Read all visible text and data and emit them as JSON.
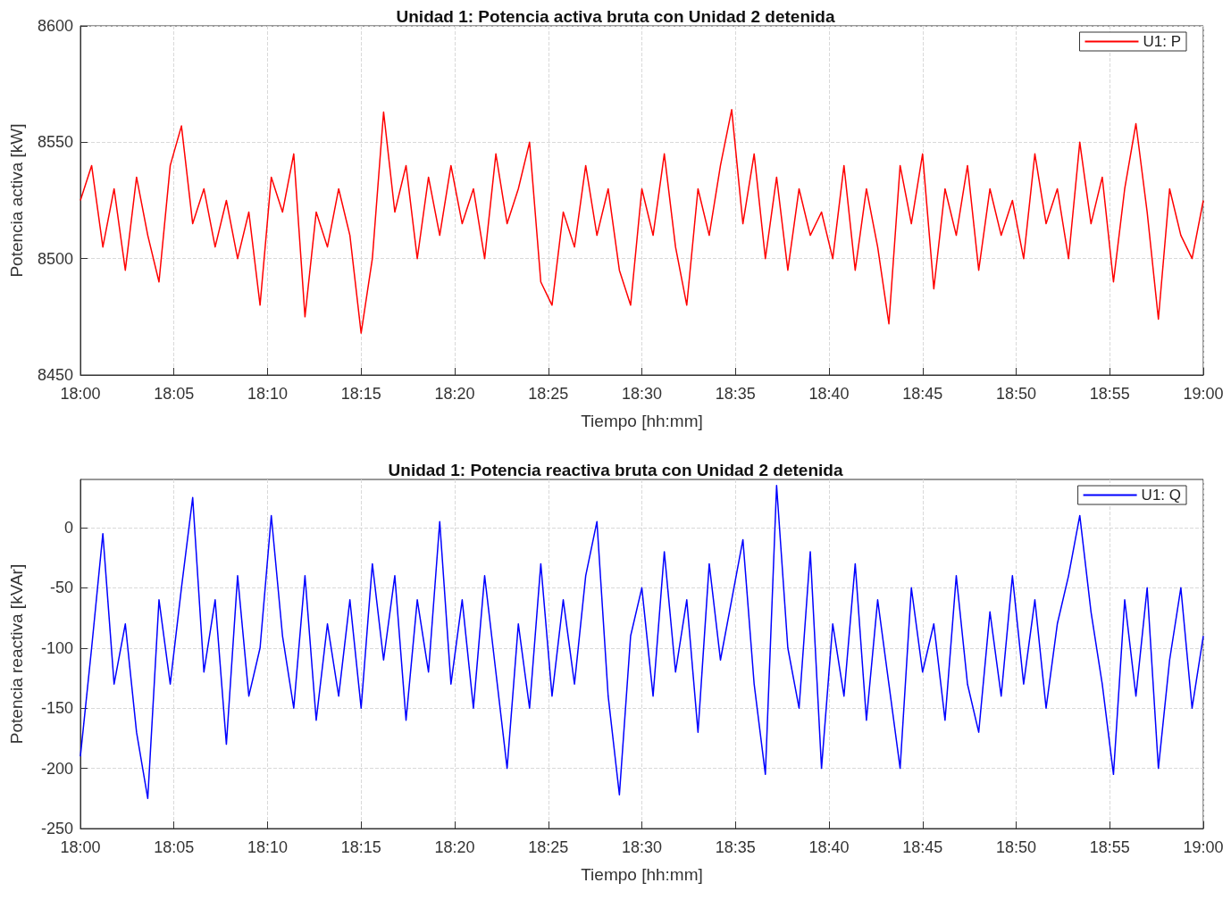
{
  "chart_data": [
    {
      "type": "line",
      "title": "Unidad 1: Potencia activa bruta con Unidad 2 detenida",
      "xlabel": "Tiempo [hh:mm]",
      "ylabel": "Potencia activa [kW]",
      "xlim": [
        18,
        19
      ],
      "xticks": [
        {
          "value": 18,
          "label": "18:00"
        },
        {
          "value": 18.0833,
          "label": "18:05"
        },
        {
          "value": 18.1667,
          "label": "18:10"
        },
        {
          "value": 18.25,
          "label": "18:15"
        },
        {
          "value": 18.3333,
          "label": "18:20"
        },
        {
          "value": 18.4167,
          "label": "18:25"
        },
        {
          "value": 18.5,
          "label": "18:30"
        },
        {
          "value": 18.5833,
          "label": "18:35"
        },
        {
          "value": 18.6667,
          "label": "18:40"
        },
        {
          "value": 18.75,
          "label": "18:45"
        },
        {
          "value": 18.8333,
          "label": "18:50"
        },
        {
          "value": 18.9167,
          "label": "18:55"
        },
        {
          "value": 19,
          "label": "19:00"
        }
      ],
      "ylim": [
        8450,
        8600
      ],
      "yticks": [
        8450,
        8500,
        8550,
        8600
      ],
      "grid": true,
      "legend": "top right",
      "marker": "none",
      "line_style": "solid",
      "x": [
        18,
        18.01,
        18.02,
        18.03,
        18.04,
        18.05,
        18.06,
        18.07,
        18.08,
        18.09,
        18.1,
        18.11,
        18.12,
        18.13,
        18.14,
        18.15,
        18.16,
        18.17,
        18.18,
        18.19,
        18.2,
        18.21,
        18.22,
        18.23,
        18.24,
        18.25,
        18.26,
        18.27,
        18.28,
        18.29,
        18.3,
        18.31,
        18.32,
        18.33,
        18.34,
        18.35,
        18.36,
        18.37,
        18.38,
        18.39,
        18.4,
        18.41,
        18.42,
        18.43,
        18.44,
        18.45,
        18.46,
        18.47,
        18.48,
        18.49,
        18.5,
        18.51,
        18.52,
        18.53,
        18.54,
        18.55,
        18.56,
        18.57,
        18.58,
        18.59,
        18.6,
        18.61,
        18.62,
        18.63,
        18.64,
        18.65,
        18.66,
        18.67,
        18.68,
        18.69,
        18.7,
        18.71,
        18.72,
        18.73,
        18.74,
        18.75,
        18.76,
        18.77,
        18.78,
        18.79,
        18.8,
        18.81,
        18.82,
        18.83,
        18.84,
        18.85,
        18.86,
        18.87,
        18.88,
        18.89,
        18.9,
        18.91,
        18.92,
        18.93,
        18.94,
        18.95,
        18.96,
        18.97,
        18.98,
        18.99,
        19
      ],
      "series": [
        {
          "name": "U1: P",
          "color": "#ff0000",
          "values": [
            8525,
            8540,
            8505,
            8530,
            8495,
            8535,
            8510,
            8490,
            8540,
            8557,
            8515,
            8530,
            8505,
            8525,
            8500,
            8520,
            8480,
            8535,
            8520,
            8545,
            8475,
            8520,
            8505,
            8530,
            8510,
            8468,
            8500,
            8563,
            8520,
            8540,
            8500,
            8535,
            8510,
            8540,
            8515,
            8530,
            8500,
            8545,
            8515,
            8530,
            8550,
            8490,
            8480,
            8520,
            8505,
            8540,
            8510,
            8530,
            8495,
            8480,
            8530,
            8510,
            8545,
            8505,
            8480,
            8530,
            8510,
            8540,
            8564,
            8515,
            8545,
            8500,
            8535,
            8495,
            8530,
            8510,
            8520,
            8500,
            8540,
            8495,
            8530,
            8505,
            8472,
            8540,
            8515,
            8545,
            8487,
            8530,
            8510,
            8540,
            8495,
            8530,
            8510,
            8525,
            8500,
            8545,
            8515,
            8530,
            8500,
            8550,
            8515,
            8535,
            8490,
            8530,
            8558,
            8520,
            8474,
            8530,
            8510,
            8500,
            8525
          ]
        }
      ]
    },
    {
      "type": "line",
      "title": "Unidad 1: Potencia reactiva bruta con Unidad 2 detenida",
      "xlabel": "Tiempo [hh:mm]",
      "ylabel": "Potencia reactiva [kVAr]",
      "xlim": [
        18,
        19
      ],
      "xticks": [
        {
          "value": 18,
          "label": "18:00"
        },
        {
          "value": 18.0833,
          "label": "18:05"
        },
        {
          "value": 18.1667,
          "label": "18:10"
        },
        {
          "value": 18.25,
          "label": "18:15"
        },
        {
          "value": 18.3333,
          "label": "18:20"
        },
        {
          "value": 18.4167,
          "label": "18:25"
        },
        {
          "value": 18.5,
          "label": "18:30"
        },
        {
          "value": 18.5833,
          "label": "18:35"
        },
        {
          "value": 18.6667,
          "label": "18:40"
        },
        {
          "value": 18.75,
          "label": "18:45"
        },
        {
          "value": 18.8333,
          "label": "18:50"
        },
        {
          "value": 18.9167,
          "label": "18:55"
        },
        {
          "value": 19,
          "label": "19:00"
        }
      ],
      "ylim": [
        -250,
        40
      ],
      "yticks": [
        -250,
        -200,
        -150,
        -100,
        -50,
        0
      ],
      "grid": true,
      "legend": "top right",
      "marker": "none",
      "line_style": "solid",
      "x": [
        18,
        18.01,
        18.02,
        18.03,
        18.04,
        18.05,
        18.06,
        18.07,
        18.08,
        18.09,
        18.1,
        18.11,
        18.12,
        18.13,
        18.14,
        18.15,
        18.16,
        18.17,
        18.18,
        18.19,
        18.2,
        18.21,
        18.22,
        18.23,
        18.24,
        18.25,
        18.26,
        18.27,
        18.28,
        18.29,
        18.3,
        18.31,
        18.32,
        18.33,
        18.34,
        18.35,
        18.36,
        18.37,
        18.38,
        18.39,
        18.4,
        18.41,
        18.42,
        18.43,
        18.44,
        18.45,
        18.46,
        18.47,
        18.48,
        18.49,
        18.5,
        18.51,
        18.52,
        18.53,
        18.54,
        18.55,
        18.56,
        18.57,
        18.58,
        18.59,
        18.6,
        18.61,
        18.62,
        18.63,
        18.64,
        18.65,
        18.66,
        18.67,
        18.68,
        18.69,
        18.7,
        18.71,
        18.72,
        18.73,
        18.74,
        18.75,
        18.76,
        18.77,
        18.78,
        18.79,
        18.8,
        18.81,
        18.82,
        18.83,
        18.84,
        18.85,
        18.86,
        18.87,
        18.88,
        18.89,
        18.9,
        18.91,
        18.92,
        18.93,
        18.94,
        18.95,
        18.96,
        18.97,
        18.98,
        18.99,
        19
      ],
      "series": [
        {
          "name": "U1: Q",
          "color": "#0000ff",
          "values": [
            -190,
            -100,
            -5,
            -130,
            -80,
            -170,
            -225,
            -60,
            -130,
            -50,
            25,
            -120,
            -60,
            -180,
            -40,
            -140,
            -100,
            10,
            -90,
            -150,
            -40,
            -160,
            -80,
            -140,
            -60,
            -150,
            -30,
            -110,
            -40,
            -160,
            -60,
            -120,
            5,
            -130,
            -60,
            -150,
            -40,
            -120,
            -200,
            -80,
            -150,
            -30,
            -140,
            -60,
            -130,
            -40,
            5,
            -140,
            -222,
            -90,
            -50,
            -140,
            -20,
            -120,
            -60,
            -170,
            -30,
            -110,
            -60,
            -10,
            -130,
            -205,
            35,
            -100,
            -150,
            -20,
            -200,
            -80,
            -140,
            -30,
            -160,
            -60,
            -130,
            -200,
            -50,
            -120,
            -80,
            -160,
            -40,
            -130,
            -170,
            -70,
            -140,
            -40,
            -130,
            -60,
            -150,
            -80,
            -40,
            10,
            -70,
            -130,
            -205,
            -60,
            -140,
            -50,
            -200,
            -110,
            -50,
            -150,
            -90
          ]
        }
      ]
    }
  ]
}
